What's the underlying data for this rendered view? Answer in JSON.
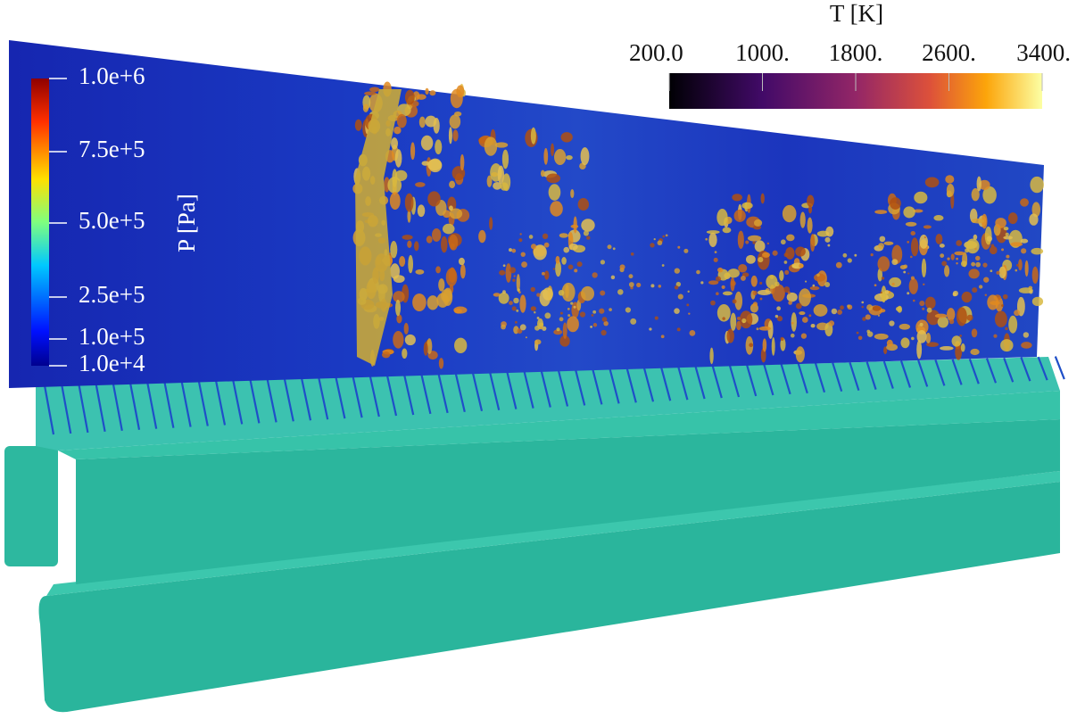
{
  "temperature_bar": {
    "title": "T [K]",
    "ticks": [
      "200.0",
      "1000.",
      "1800.",
      "2600.",
      "3400."
    ]
  },
  "pressure_bar": {
    "title": "P [Pa]",
    "ticks": [
      "1.0e+6",
      "7.5e+5",
      "5.0e+5",
      "2.5e+5",
      "1.0e+5",
      "1.0e+4"
    ]
  }
}
